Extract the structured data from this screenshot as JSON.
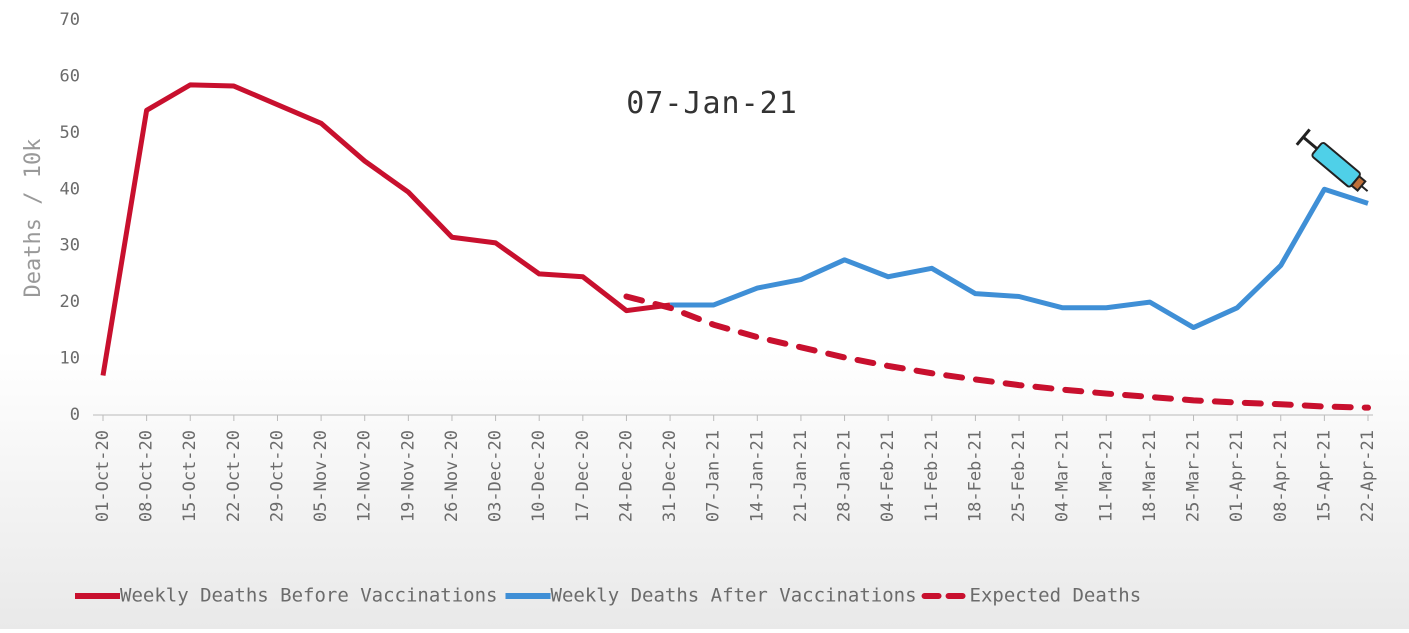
{
  "chart_data": {
    "type": "line",
    "y_label": "Deaths / 10k",
    "annotation": "07-Jan-21",
    "categories": [
      "01-Oct-20",
      "08-Oct-20",
      "15-Oct-20",
      "22-Oct-20",
      "29-Oct-20",
      "05-Nov-20",
      "12-Nov-20",
      "19-Nov-20",
      "26-Nov-20",
      "03-Dec-20",
      "10-Dec-20",
      "17-Dec-20",
      "24-Dec-20",
      "31-Dec-20",
      "07-Jan-21",
      "14-Jan-21",
      "21-Jan-21",
      "28-Jan-21",
      "04-Feb-21",
      "11-Feb-21",
      "18-Feb-21",
      "25-Feb-21",
      "04-Mar-21",
      "11-Mar-21",
      "18-Mar-21",
      "25-Mar-21",
      "01-Apr-21",
      "08-Apr-21",
      "15-Apr-21",
      "22-Apr-21"
    ],
    "series": [
      {
        "name": "Weekly Deaths Before Vaccinations",
        "color": "#c8102e",
        "dash": false,
        "values": [
          7,
          54,
          58.5,
          58.3,
          55,
          51.7,
          45,
          39.5,
          31.5,
          30.5,
          25,
          24.5,
          18.5,
          19.5,
          null,
          null,
          null,
          null,
          null,
          null,
          null,
          null,
          null,
          null,
          null,
          null,
          null,
          null,
          null,
          null
        ]
      },
      {
        "name": "Weekly Deaths After Vaccinations",
        "color": "#3f8fd6",
        "dash": false,
        "values": [
          null,
          null,
          null,
          null,
          null,
          null,
          null,
          null,
          null,
          null,
          null,
          null,
          null,
          19.5,
          19.5,
          22.5,
          24,
          27.5,
          24.5,
          26,
          21.5,
          21,
          19,
          19,
          20,
          15.5,
          19,
          26.5,
          40,
          37.5
        ]
      },
      {
        "name": "Expected Deaths",
        "color": "#c8102e",
        "dash": true,
        "values": [
          null,
          null,
          null,
          null,
          null,
          null,
          null,
          null,
          null,
          null,
          null,
          null,
          21,
          19,
          16,
          13.8,
          12,
          10.2,
          8.7,
          7.4,
          6.3,
          5.3,
          4.5,
          3.8,
          3.2,
          2.6,
          2.2,
          1.9,
          1.5,
          1.3
        ]
      }
    ],
    "ylim": [
      0,
      70
    ],
    "yticks": [
      0,
      10,
      20,
      30,
      40,
      50,
      60,
      70
    ],
    "grid": false,
    "legend": "bottom"
  }
}
